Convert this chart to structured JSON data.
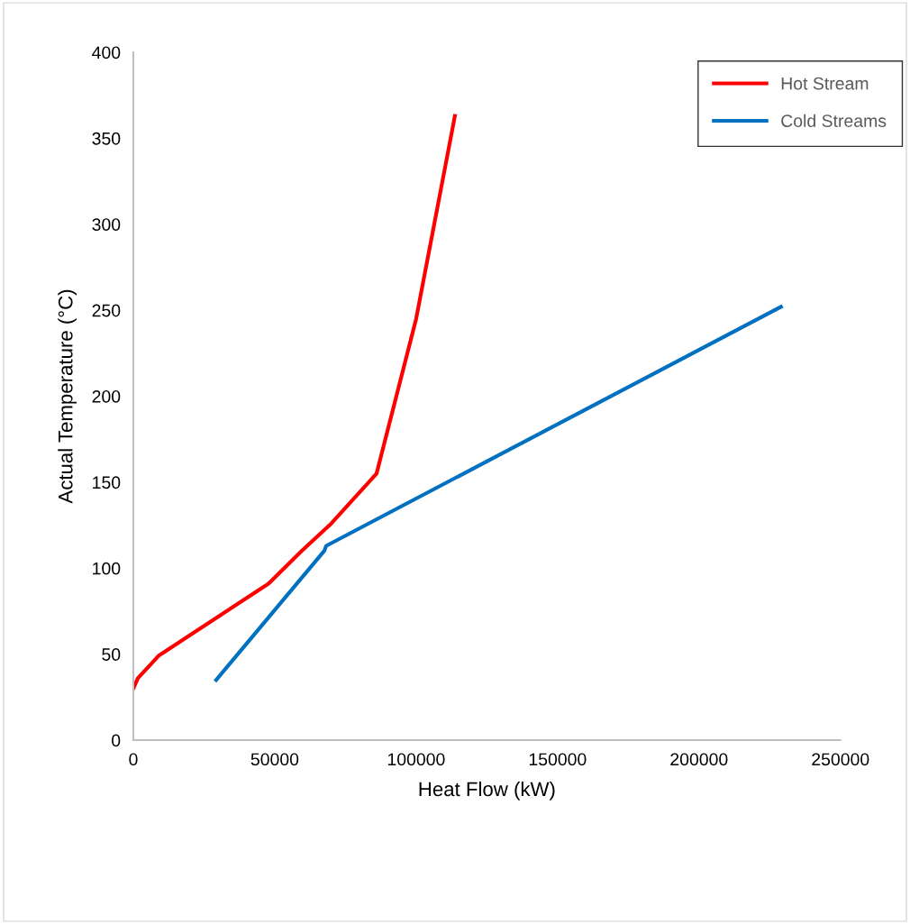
{
  "chart_data": {
    "type": "line",
    "xlabel": "Heat Flow (kW)",
    "ylabel": "Actual Temperature (°C)",
    "xlim": [
      0,
      250000
    ],
    "xticks": [
      0,
      50000,
      100000,
      150000,
      200000,
      250000
    ],
    "ylim": [
      0,
      400
    ],
    "yticks": [
      0,
      50,
      100,
      150,
      200,
      250,
      300,
      350,
      400
    ],
    "grid": false,
    "legend": "top right",
    "marker": "none",
    "line_style": "solid",
    "series": [
      {
        "name": "Hot Stream",
        "color": "#ff0000",
        "x": [
          0,
          1600,
          8900,
          47800,
          59500,
          70000,
          86000,
          100000,
          113700
        ],
        "values": [
          30,
          36,
          49,
          91,
          110,
          126,
          155,
          245,
          363
        ]
      },
      {
        "name": "Cold Streams",
        "color": "#0070c0",
        "x": [
          29300,
          67500,
          68200,
          229000
        ],
        "values": [
          35,
          110,
          113,
          252
        ]
      }
    ]
  }
}
